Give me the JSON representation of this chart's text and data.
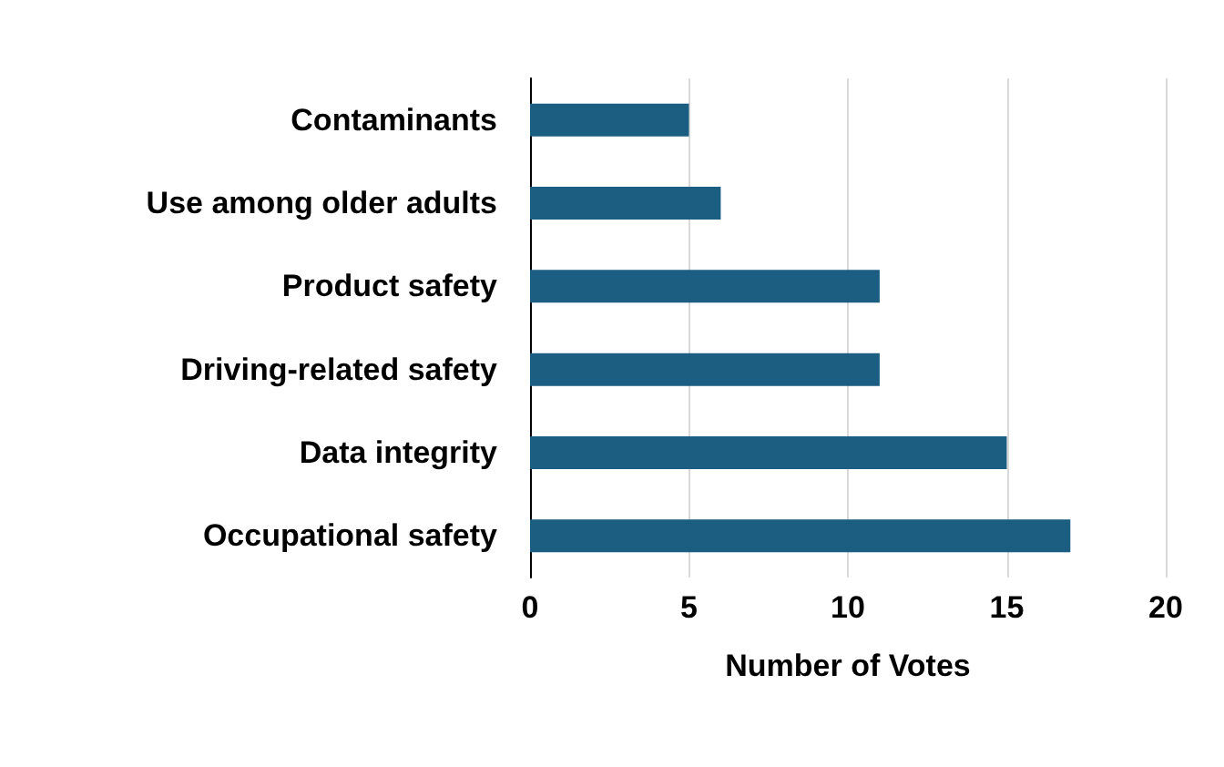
{
  "chart_data": {
    "type": "bar",
    "orientation": "horizontal",
    "xlabel": "Number of Votes",
    "categories": [
      "Contaminants",
      "Use among older adults",
      "Product safety",
      "Driving-related safety",
      "Data integrity",
      "Occupational safety"
    ],
    "values": [
      5,
      6,
      11,
      11,
      15,
      17
    ],
    "color": "#1b5e82",
    "xlim": [
      0,
      20
    ],
    "xticks": [
      0,
      5,
      10,
      15,
      20
    ],
    "grid": "x"
  }
}
